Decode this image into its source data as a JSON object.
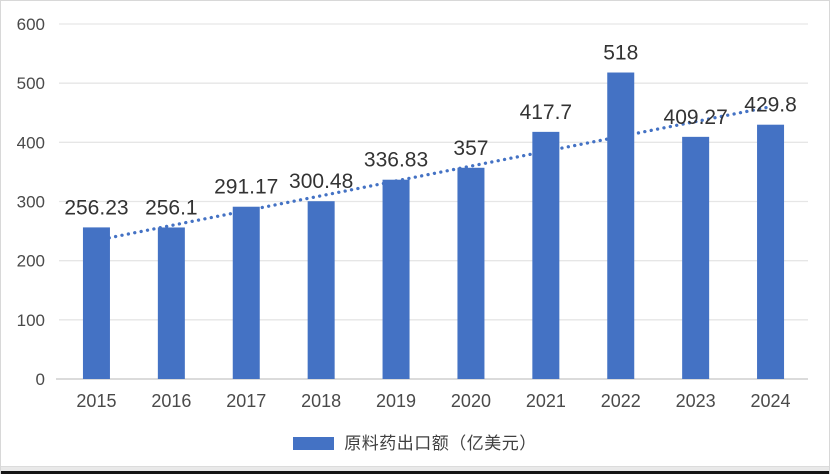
{
  "chart_data": {
    "type": "bar",
    "title": "",
    "categories": [
      "2015",
      "2016",
      "2017",
      "2018",
      "2019",
      "2020",
      "2021",
      "2022",
      "2023",
      "2024"
    ],
    "series": [
      {
        "name": "原料药出口额（亿美元）",
        "values": [
          256.23,
          256.1,
          291.17,
          300.48,
          336.83,
          357,
          417.7,
          518,
          409.27,
          429.8
        ]
      }
    ],
    "data_labels": [
      "256.23",
      "256.1",
      "291.17",
      "300.48",
      "336.83",
      "357",
      "417.7",
      "518",
      "409.27",
      "429.8"
    ],
    "xlabel": "",
    "ylabel": "",
    "ylim": [
      0,
      600
    ],
    "ytick_interval": 100,
    "yticks": [
      "0",
      "100",
      "200",
      "300",
      "400",
      "500",
      "600"
    ],
    "grid": true,
    "legend_position": "bottom-center",
    "trendline": {
      "type": "linear",
      "style": "dotted",
      "start_value": 234.4,
      "end_value": 460.2
    }
  },
  "colors": {
    "bar": "#4472C4",
    "trendline": "#4472C4",
    "gridline": "#E6E6E6",
    "axis_line": "#CFCFCF",
    "tick_text": "#4A4A4A",
    "data_label_text": "#333333",
    "legend_text": "#404040",
    "background": "#FFFFFF"
  }
}
